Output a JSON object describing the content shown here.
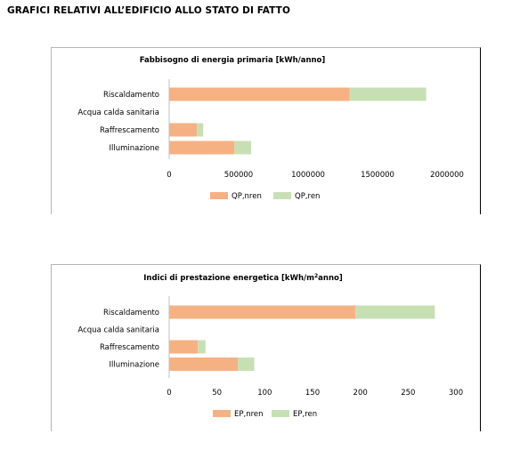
{
  "heading": "GRAFICI RELATIVI ALL’EDIFICIO ALLO STATO DI FATTO",
  "colors": {
    "nren": "#f6b183",
    "ren": "#c6e0b4"
  },
  "chart_data": [
    {
      "type": "bar",
      "orientation": "horizontal",
      "stacked": true,
      "title": "Fabbisogno di energia primaria [kWh/anno]",
      "categories": [
        "Riscaldamento",
        "Acqua calda sanitaria",
        "Raffrescamento",
        "Illuminazione"
      ],
      "series": [
        {
          "name": "QP,nren",
          "values": [
            1300000,
            0,
            200000,
            470000
          ]
        },
        {
          "name": "QP,ren",
          "values": [
            550000,
            0,
            45000,
            120000
          ]
        }
      ],
      "xlim": [
        0,
        2000000
      ],
      "ticks": [
        "0",
        "500000",
        "1000000",
        "1500000",
        "2000000"
      ],
      "legend": "bottom"
    },
    {
      "type": "bar",
      "orientation": "horizontal",
      "stacked": true,
      "title_main": "Indici di prestazione energetica [kWh/m",
      "title_sup": "2",
      "title_end": "anno]",
      "categories": [
        "Riscaldamento",
        "Acqua calda sanitaria",
        "Raffrescamento",
        "Illuminazione"
      ],
      "series": [
        {
          "name": "EP,nren",
          "values": [
            195,
            0,
            30,
            72
          ]
        },
        {
          "name": "EP,ren",
          "values": [
            83,
            0,
            8,
            17
          ]
        }
      ],
      "xlim": [
        0,
        300
      ],
      "ticks": [
        "0",
        "50",
        "100",
        "150",
        "200",
        "250",
        "300"
      ],
      "legend": "bottom"
    }
  ]
}
